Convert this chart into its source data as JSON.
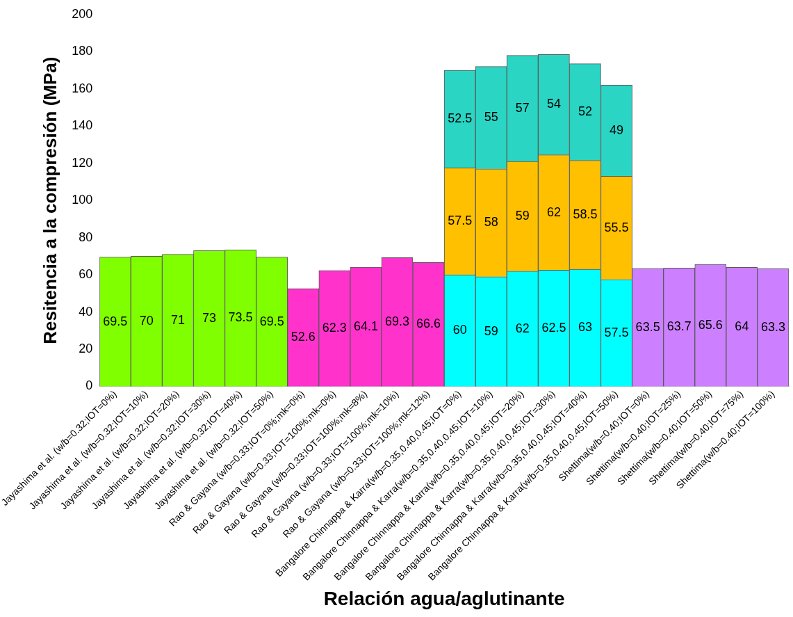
{
  "chart_data": {
    "type": "bar",
    "stacked": true,
    "xlabel": "Relación agua/aglutinante",
    "ylabel": "Resitencia a la compresión (MPa)",
    "categories": [
      "Jayashima et al. (w/b=0.32;IOT=0%)",
      "Jayashima et al. (w/b=0.32;IOT=10%)",
      "Jayashima et al. (w/b=0.32;IOT=20%)",
      "Jayashima et al. (w/b=0.32;IOT=30%)",
      "Jayashima et al. (w/b=0.32;IOT=40%)",
      "Jayashima et al. (w/b=0.32;IOT=50%)",
      "Rao & Gayana (w/b=0.33;IOT=0%;mk=0%)",
      "Rao & Gayana (w/b=0.33;IOT=100%;mk=0%)",
      "Rao & Gayana (w/b=0.33;IOT=100%;mk=8%)",
      "Rao & Gayana (w/b=0.33;IOT=100%;mk=10%)",
      "Rao & Gayana (w/b=0.33;IOT=100%;mk=12%)",
      "Bangalore Chinnappa & Karra(w/b=0.35,0.40,0.45;IOT=0%)",
      "Bangalore Chinnappa & Karra(w/b=0.35,0.40,0.45;IOT=10%)",
      "Bangalore Chinnappa & Karra(w/b=0.35,0.40,0.45;IOT=20%)",
      "Bangalore Chinnappa & Karra(w/b=0.35,0.40,0.45;IOT=30%)",
      "Bangalore Chinnappa & Karra(w/b=0.35,0.40,0.45;IOT=40%)",
      "Bangalore Chinnappa & Karra(w/b=0.35,0.40,0.45;IOT=50%)",
      "Shettima(w/b=0.40;IOT=0%)",
      "Shettima(w/b=0.40;IOT=25%)",
      "Shettima(w/b=0.40;IOT=50%)",
      "Shettima(w/b=0.40;IOT=75%)",
      "Shettima(w/b=0.40;IOT=100%)"
    ],
    "series": [
      {
        "colors": [
          "#80ff00",
          "#80ff00",
          "#80ff00",
          "#80ff00",
          "#80ff00",
          "#80ff00",
          "#ff33cc",
          "#ff33cc",
          "#ff33cc",
          "#ff33cc",
          "#ff33cc",
          "#00ffff",
          "#00ffff",
          "#00ffff",
          "#00ffff",
          "#00ffff",
          "#00ffff",
          "#cc80ff",
          "#cc80ff",
          "#cc80ff",
          "#cc80ff",
          "#cc80ff"
        ],
        "values": [
          69.5,
          70,
          71,
          73,
          73.5,
          69.5,
          52.6,
          62.3,
          64.1,
          69.3,
          66.6,
          60,
          59,
          62,
          62.5,
          63,
          57.5,
          63.5,
          63.7,
          65.6,
          64,
          63.3
        ]
      },
      {
        "color": "#ffc000",
        "values": [
          null,
          null,
          null,
          null,
          null,
          null,
          null,
          null,
          null,
          null,
          null,
          57.5,
          58,
          59,
          62,
          58.5,
          55.5,
          null,
          null,
          null,
          null,
          null
        ]
      },
      {
        "color": "#2ad5c4",
        "values": [
          null,
          null,
          null,
          null,
          null,
          null,
          null,
          null,
          null,
          null,
          null,
          52.5,
          55,
          57,
          54,
          52,
          49,
          null,
          null,
          null,
          null,
          null
        ]
      }
    ],
    "ylim": [
      0,
      200
    ],
    "yticks": [
      0,
      20,
      40,
      60,
      80,
      100,
      120,
      140,
      160,
      180,
      200
    ],
    "grid": false,
    "legend": false,
    "data_labels": true
  }
}
